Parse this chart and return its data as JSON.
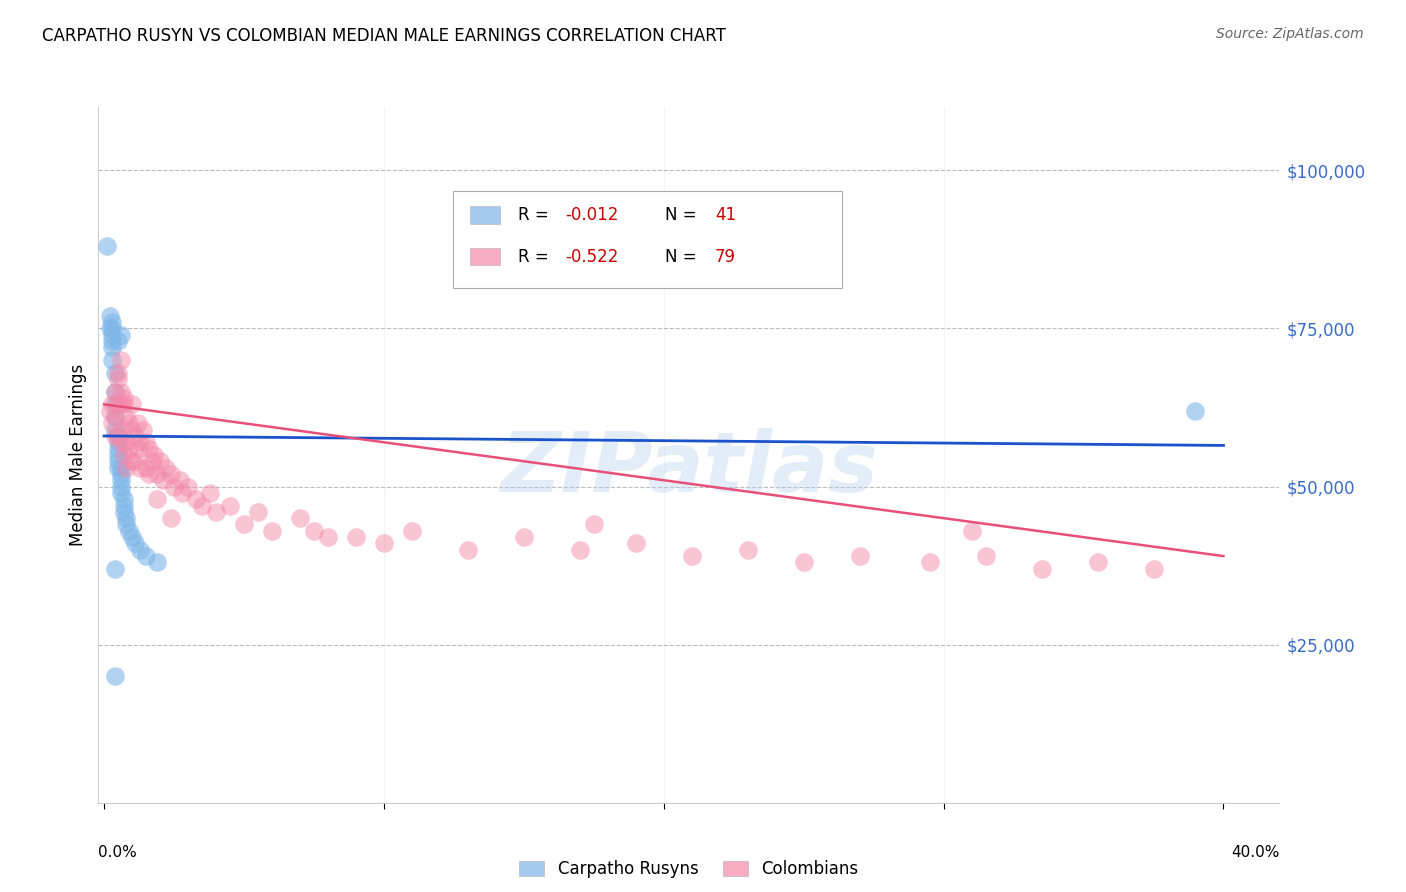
{
  "title": "CARPATHO RUSYN VS COLOMBIAN MEDIAN MALE EARNINGS CORRELATION CHART",
  "source": "Source: ZipAtlas.com",
  "ylabel": "Median Male Earnings",
  "ytick_labels": [
    "$25,000",
    "$50,000",
    "$75,000",
    "$100,000"
  ],
  "ytick_values": [
    25000,
    50000,
    75000,
    100000
  ],
  "ymin": 0,
  "ymax": 110000,
  "xmin": -0.002,
  "xmax": 0.42,
  "legend_label1": "Carpatho Rusyns",
  "legend_label2": "Colombians",
  "blue_color": "#7EB6E8",
  "pink_color": "#F48AAB",
  "blue_line_color": "#1A52CC",
  "pink_line_color": "#E8507A",
  "watermark": "ZIPatlas",
  "blue_scatter_x": [
    0.001,
    0.002,
    0.002,
    0.003,
    0.003,
    0.003,
    0.003,
    0.003,
    0.004,
    0.004,
    0.004,
    0.004,
    0.004,
    0.005,
    0.005,
    0.005,
    0.005,
    0.005,
    0.005,
    0.006,
    0.006,
    0.006,
    0.006,
    0.006,
    0.007,
    0.007,
    0.007,
    0.008,
    0.008,
    0.009,
    0.01,
    0.011,
    0.013,
    0.015,
    0.019,
    0.003,
    0.005,
    0.006,
    0.39,
    0.004,
    0.004
  ],
  "blue_scatter_y": [
    88000,
    77000,
    75000,
    76000,
    74000,
    73000,
    72000,
    70000,
    68000,
    65000,
    63000,
    61000,
    59000,
    58000,
    57000,
    56000,
    55000,
    54000,
    53000,
    53000,
    52000,
    51000,
    50000,
    49000,
    48000,
    47000,
    46000,
    45000,
    44000,
    43000,
    42000,
    41000,
    40000,
    39000,
    38000,
    75000,
    73000,
    74000,
    62000,
    37000,
    20000
  ],
  "pink_scatter_x": [
    0.002,
    0.003,
    0.003,
    0.004,
    0.004,
    0.004,
    0.005,
    0.005,
    0.005,
    0.006,
    0.006,
    0.006,
    0.007,
    0.007,
    0.007,
    0.008,
    0.008,
    0.008,
    0.009,
    0.009,
    0.01,
    0.01,
    0.01,
    0.011,
    0.011,
    0.012,
    0.012,
    0.013,
    0.013,
    0.014,
    0.015,
    0.015,
    0.016,
    0.017,
    0.018,
    0.019,
    0.02,
    0.021,
    0.022,
    0.024,
    0.025,
    0.027,
    0.028,
    0.03,
    0.033,
    0.035,
    0.038,
    0.04,
    0.045,
    0.05,
    0.055,
    0.06,
    0.07,
    0.075,
    0.08,
    0.09,
    0.1,
    0.11,
    0.13,
    0.15,
    0.17,
    0.19,
    0.21,
    0.23,
    0.25,
    0.27,
    0.295,
    0.315,
    0.335,
    0.355,
    0.375,
    0.005,
    0.006,
    0.007,
    0.016,
    0.019,
    0.024,
    0.175,
    0.31
  ],
  "pink_scatter_y": [
    62000,
    63000,
    60000,
    65000,
    61000,
    58000,
    68000,
    63000,
    58000,
    70000,
    63000,
    57000,
    64000,
    59000,
    55000,
    61000,
    57000,
    53000,
    60000,
    56000,
    63000,
    59000,
    54000,
    58000,
    54000,
    60000,
    56000,
    57000,
    53000,
    59000,
    57000,
    53000,
    56000,
    54000,
    55000,
    52000,
    54000,
    51000,
    53000,
    52000,
    50000,
    51000,
    49000,
    50000,
    48000,
    47000,
    49000,
    46000,
    47000,
    44000,
    46000,
    43000,
    45000,
    43000,
    42000,
    42000,
    41000,
    43000,
    40000,
    42000,
    40000,
    41000,
    39000,
    40000,
    38000,
    39000,
    38000,
    39000,
    37000,
    38000,
    37000,
    67000,
    65000,
    63000,
    52000,
    48000,
    45000,
    44000,
    43000
  ],
  "blue_trendline_x": [
    0.0,
    0.4
  ],
  "blue_trendline_y": [
    58000,
    56500
  ],
  "pink_trendline_x": [
    0.0,
    0.4
  ],
  "pink_trendline_y": [
    63000,
    39000
  ]
}
